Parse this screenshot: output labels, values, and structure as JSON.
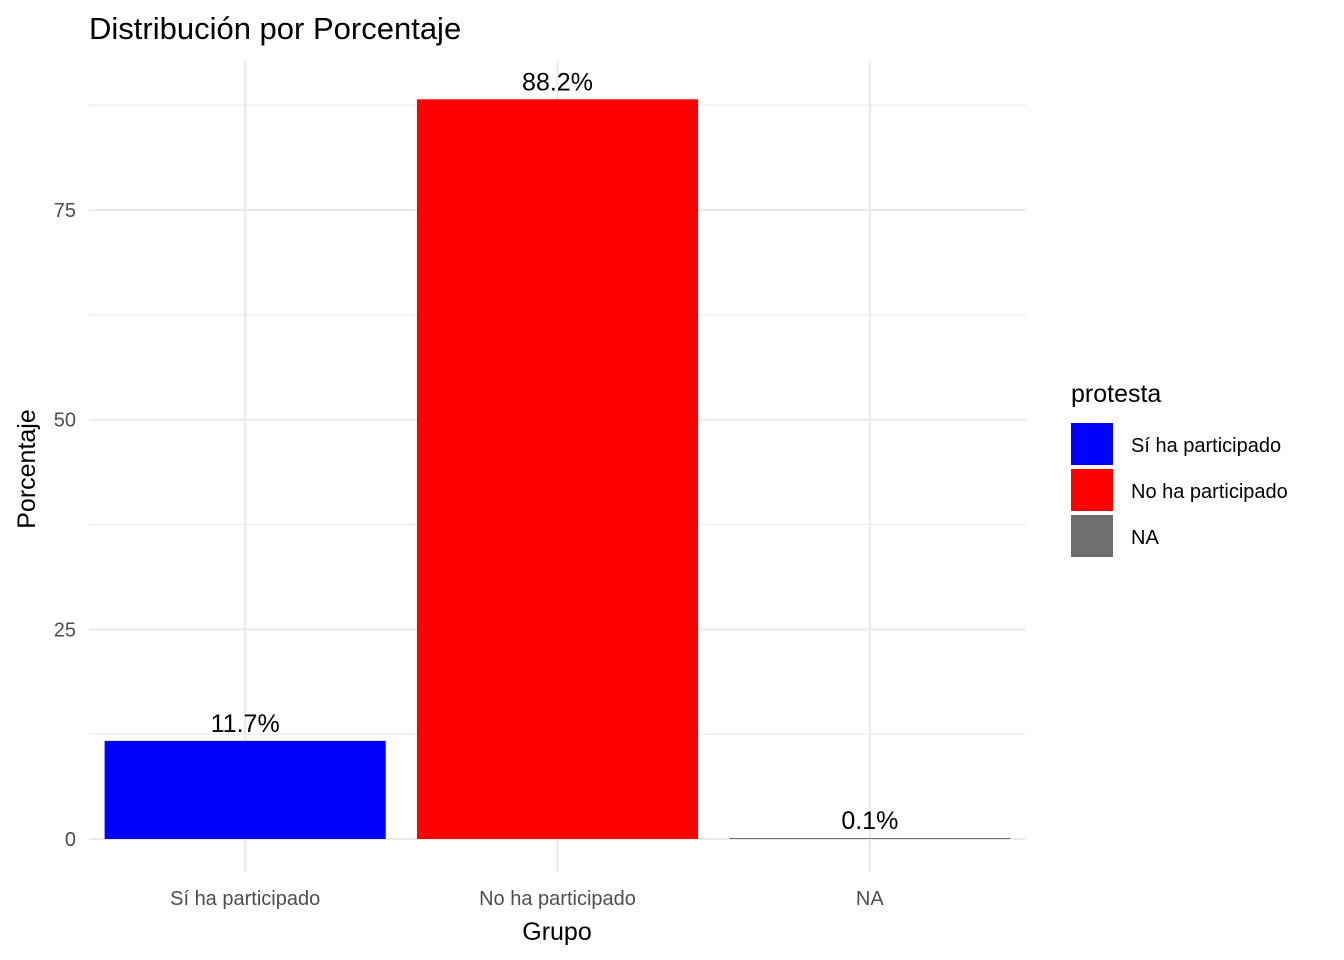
{
  "chart_data": {
    "type": "bar",
    "title": "Distribución por Porcentaje",
    "xlabel": "Grupo",
    "ylabel": "Porcentaje",
    "categories": [
      "Sí ha participado",
      "No ha participado",
      "NA"
    ],
    "values": [
      11.7,
      88.2,
      0.1
    ],
    "data_labels": [
      "11.7%",
      "88.2%",
      "0.1%"
    ],
    "colors": [
      "#0000ff",
      "#ff0000",
      "#6e6e6e"
    ],
    "ylim": [
      0,
      92
    ],
    "yticks": [
      0,
      25,
      50,
      75
    ],
    "yticks_minor": [
      12.5,
      37.5,
      62.5,
      87.5
    ],
    "grid": true,
    "legend": {
      "title": "protesta",
      "placement": "right",
      "entries": [
        "Sí ha participado",
        "No ha participado",
        "NA"
      ]
    }
  }
}
